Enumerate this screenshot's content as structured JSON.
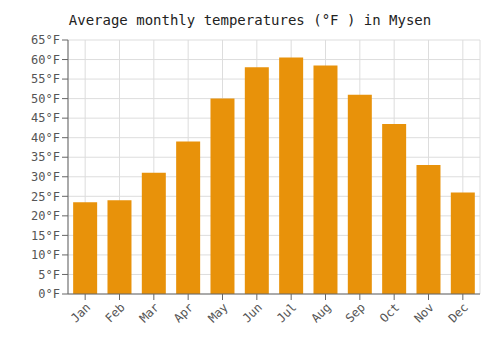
{
  "chart_data": {
    "type": "bar",
    "title": "Average monthly temperatures (°F ) in Mysen",
    "categories": [
      "Jan",
      "Feb",
      "Mar",
      "Apr",
      "May",
      "Jun",
      "Jul",
      "Aug",
      "Sep",
      "Oct",
      "Nov",
      "Dec"
    ],
    "values": [
      23.5,
      24.0,
      31.0,
      39.0,
      50.0,
      58.0,
      60.5,
      58.5,
      51.0,
      43.5,
      33.0,
      26.0
    ],
    "color": "#E8920A",
    "ylim": [
      0,
      65
    ],
    "yticks": [
      {
        "value": 0,
        "label": "0°F"
      },
      {
        "value": 5,
        "label": "5°F"
      },
      {
        "value": 10,
        "label": "10°F"
      },
      {
        "value": 15,
        "label": "15°F"
      },
      {
        "value": 20,
        "label": "20°F"
      },
      {
        "value": 25,
        "label": "25°F"
      },
      {
        "value": 30,
        "label": "30°F"
      },
      {
        "value": 35,
        "label": "35°F"
      },
      {
        "value": 40,
        "label": "40°F"
      },
      {
        "value": 45,
        "label": "45°F"
      },
      {
        "value": 50,
        "label": "50°F"
      },
      {
        "value": 55,
        "label": "55°F"
      },
      {
        "value": 60,
        "label": "60°F"
      },
      {
        "value": 65,
        "label": "65°F"
      }
    ],
    "grid": true
  }
}
